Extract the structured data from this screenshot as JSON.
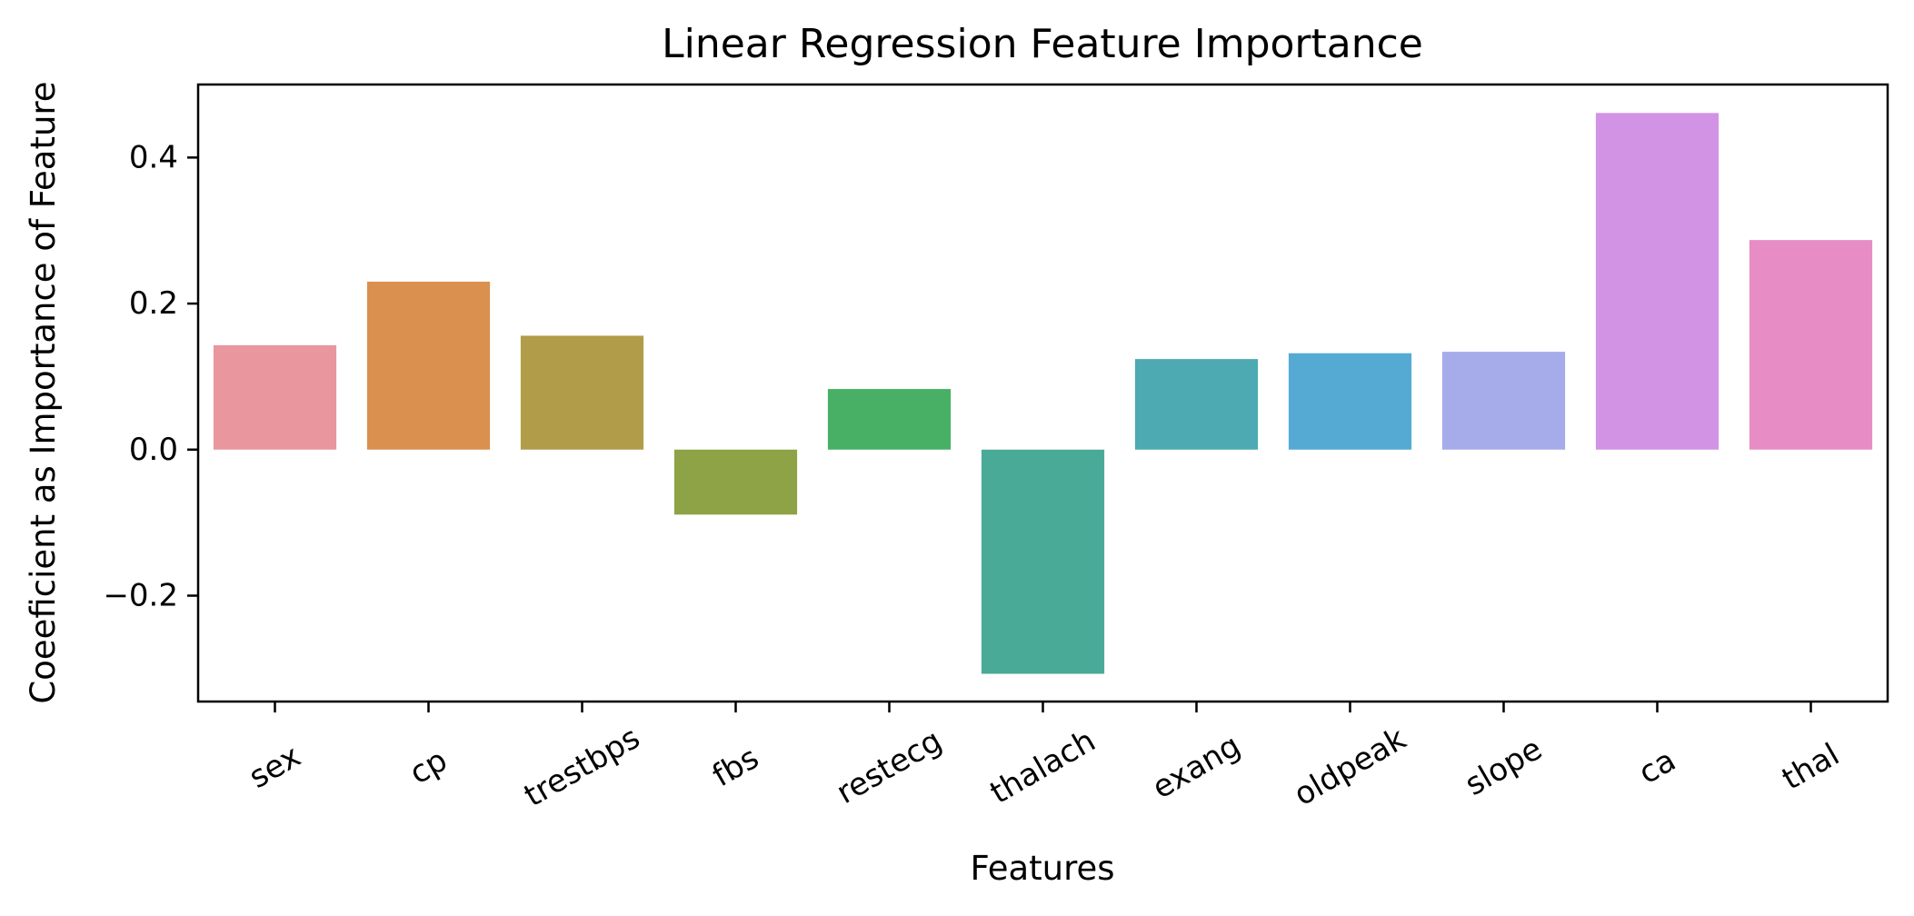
{
  "chart_data": {
    "type": "bar",
    "title": "Linear Regression Feature Importance",
    "xlabel": "Features",
    "ylabel": "Coeeficient as Importance of Feature",
    "categories": [
      "sex",
      "cp",
      "trestbps",
      "fbs",
      "restecg",
      "thalach",
      "exang",
      "oldpeak",
      "slope",
      "ca",
      "thal"
    ],
    "values": [
      0.143,
      0.23,
      0.156,
      -0.089,
      0.083,
      -0.307,
      0.124,
      0.132,
      0.134,
      0.461,
      0.287
    ],
    "colors": [
      "#e9969f",
      "#da904e",
      "#b19c49",
      "#8da345",
      "#47b065",
      "#4aaa98",
      "#4da9b2",
      "#55aad4",
      "#a6abe9",
      "#d393e4",
      "#e78cc4"
    ],
    "ylim": [
      -0.345,
      0.5
    ],
    "yticks": [
      0.4,
      0.2,
      0.0,
      -0.2
    ],
    "ytick_labels": [
      "0.4",
      "0.2",
      "0.0",
      "−0.2"
    ],
    "grid": false,
    "legend": "none"
  }
}
